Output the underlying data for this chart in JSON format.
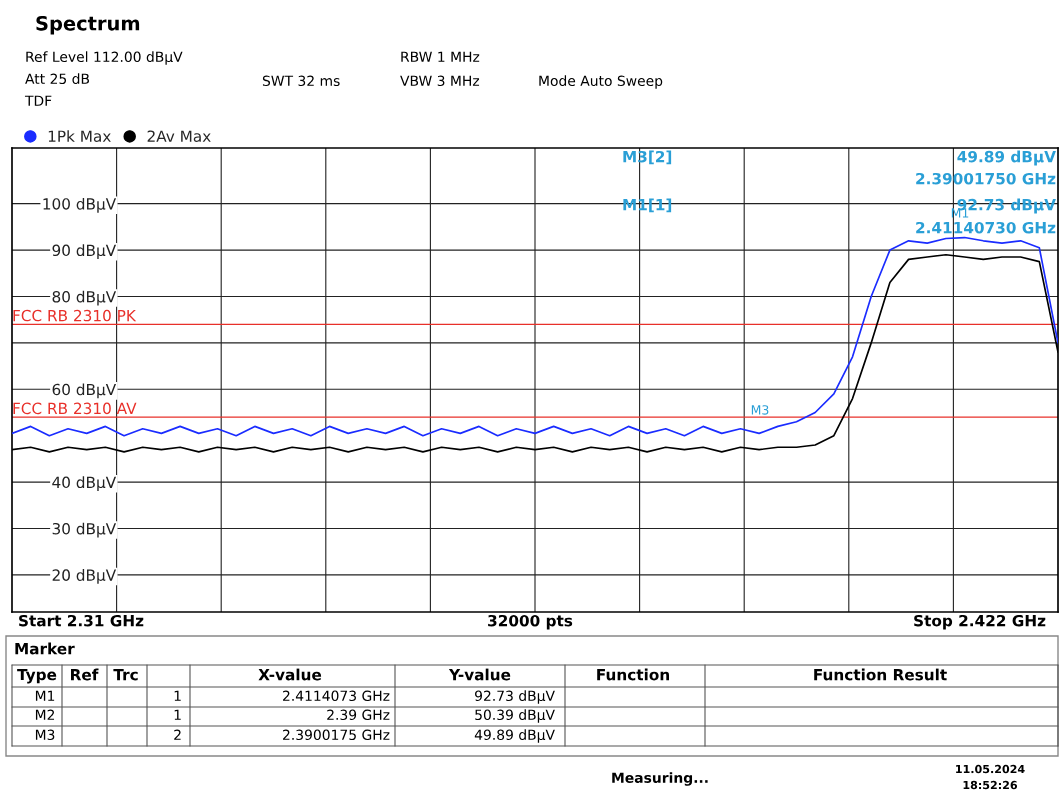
{
  "chart_data": {
    "type": "line",
    "legend": "top left",
    "grid": true,
    "tick_labels": "y",
    "marker": "none",
    "line_style": "solid",
    "categories": [
      null,
      null,
      null,
      null,
      null,
      null,
      null,
      null,
      null,
      null,
      null,
      null,
      null,
      null,
      null,
      null,
      null,
      null,
      null,
      null,
      null,
      null,
      null,
      null,
      null,
      null,
      null,
      null,
      null,
      null,
      null,
      null,
      null,
      null,
      null,
      null,
      null,
      null,
      null,
      null,
      null,
      null,
      null,
      null,
      null,
      null,
      null,
      null,
      null,
      null,
      null,
      null,
      null,
      null,
      null,
      null,
      null
    ],
    "ylim": [
      12,
      112
    ],
    "yticks": [
      {
        "value": 20,
        "label": "20 dBµV"
      },
      {
        "value": 30,
        "label": "30 dBµV"
      },
      {
        "value": 40,
        "label": "40 dBµV"
      },
      {
        "value": 60,
        "label": "60 dBµV"
      },
      {
        "value": 70,
        "label": null
      },
      {
        "value": 80,
        "label": "80 dBµV"
      },
      {
        "value": 90,
        "label": "90 dBµV"
      },
      {
        "value": 100,
        "label": "100 dBµV"
      }
    ],
    "series": [
      {
        "name": "1Pk Max",
        "color": "#1a2cff",
        "values": [
          50.5,
          52,
          50,
          51.5,
          50.5,
          52,
          50,
          51.5,
          50.5,
          52,
          50.5,
          51.5,
          50,
          52,
          50.5,
          51.5,
          50,
          52,
          50.5,
          51.5,
          50.5,
          52,
          50,
          51.5,
          50.5,
          52,
          50,
          51.5,
          50.5,
          52,
          50.5,
          51.5,
          50,
          52,
          50.5,
          51.5,
          50,
          52,
          50.5,
          51.5,
          50.5,
          52,
          53,
          55,
          59,
          67,
          80,
          90,
          92,
          91.5,
          92.5,
          92.7,
          92,
          91.5,
          92,
          90.5,
          70
        ]
      },
      {
        "name": "2Av Max",
        "color": "#000000",
        "values": [
          47,
          47.5,
          46.5,
          47.5,
          47,
          47.5,
          46.5,
          47.5,
          47,
          47.5,
          46.5,
          47.5,
          47,
          47.5,
          46.5,
          47.5,
          47,
          47.5,
          46.5,
          47.5,
          47,
          47.5,
          46.5,
          47.5,
          47,
          47.5,
          46.5,
          47.5,
          47,
          47.5,
          46.5,
          47.5,
          47,
          47.5,
          46.5,
          47.5,
          47,
          47.5,
          46.5,
          47.5,
          47,
          47.5,
          47.5,
          48,
          50,
          58,
          70,
          83,
          88,
          88.5,
          89,
          88.5,
          88,
          88.5,
          88.5,
          87.5,
          68
        ]
      }
    ],
    "ref_lines": [
      {
        "axis": "y",
        "value": 74,
        "label": "FCC RB 2310 PK",
        "color": "#e8302a"
      },
      {
        "axis": "y",
        "value": 54,
        "label": "FCC RB 2310 AV",
        "color": "#e8302a"
      }
    ],
    "annotations": [
      "Spectrum",
      "Ref Level 112.00 dBµV",
      "Att 25 dB",
      "SWT 32 ms",
      "RBW 1 MHz",
      "VBW 3 MHz",
      "Mode Auto Sweep",
      "TDF",
      "M3[2]",
      "49.89 dBµV",
      "2.39001750 GHz",
      "M1[1]",
      "92.73 dBµV",
      "2.41140730 GHz",
      "Start 2.31 GHz",
      "32000 pts",
      "Stop 2.422 GHz",
      "Marker",
      "Type",
      "Ref",
      "Trc",
      "X-value",
      "Y-value",
      "Function",
      "Function Result",
      "M1",
      "1",
      "2.4114073 GHz",
      "92.73 dBµV",
      "M2",
      "1",
      "2.39 GHz",
      "50.39 dBµV",
      "M3",
      "2",
      "2.3900175 GHz",
      "49.89 dBµV",
      "Measuring...",
      "11.05.2024",
      "18:52:26",
      "M1",
      "M3"
    ]
  }
}
